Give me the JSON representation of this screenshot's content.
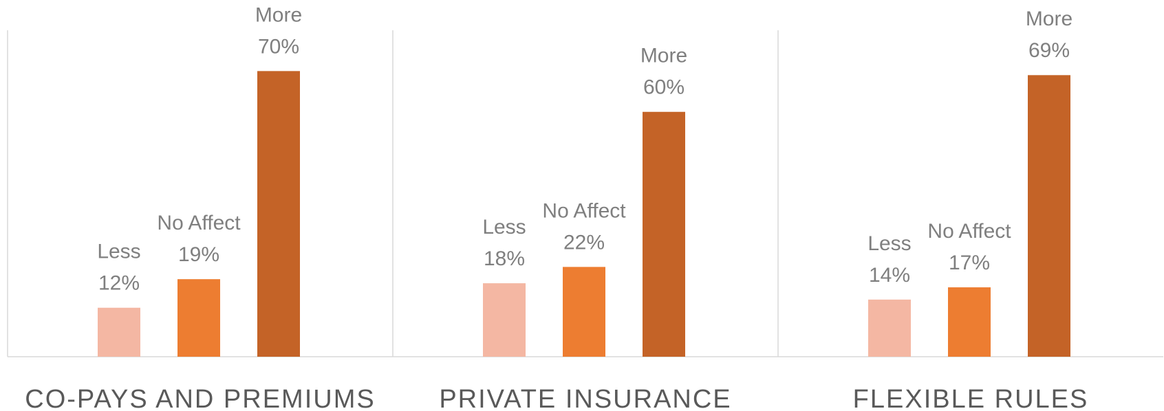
{
  "chart_data": {
    "type": "bar",
    "categories": [
      "CO-PAYS AND PREMIUMS",
      "PRIVATE INSURANCE",
      "FLEXIBLE RULES"
    ],
    "series": [
      {
        "name": "Less",
        "color": "#f4b7a3",
        "values": [
          12,
          18,
          14
        ],
        "value_labels": [
          "12%",
          "18%",
          "14%"
        ]
      },
      {
        "name": "No Affect",
        "color": "#ed7d31",
        "values": [
          19,
          22,
          17
        ],
        "value_labels": [
          "19%",
          "22%",
          "17%"
        ]
      },
      {
        "name": "More",
        "color": "#c46327",
        "values": [
          70,
          60,
          69
        ],
        "value_labels": [
          "70%",
          "60%",
          "69%"
        ]
      }
    ],
    "ylim": [
      0,
      80
    ]
  }
}
